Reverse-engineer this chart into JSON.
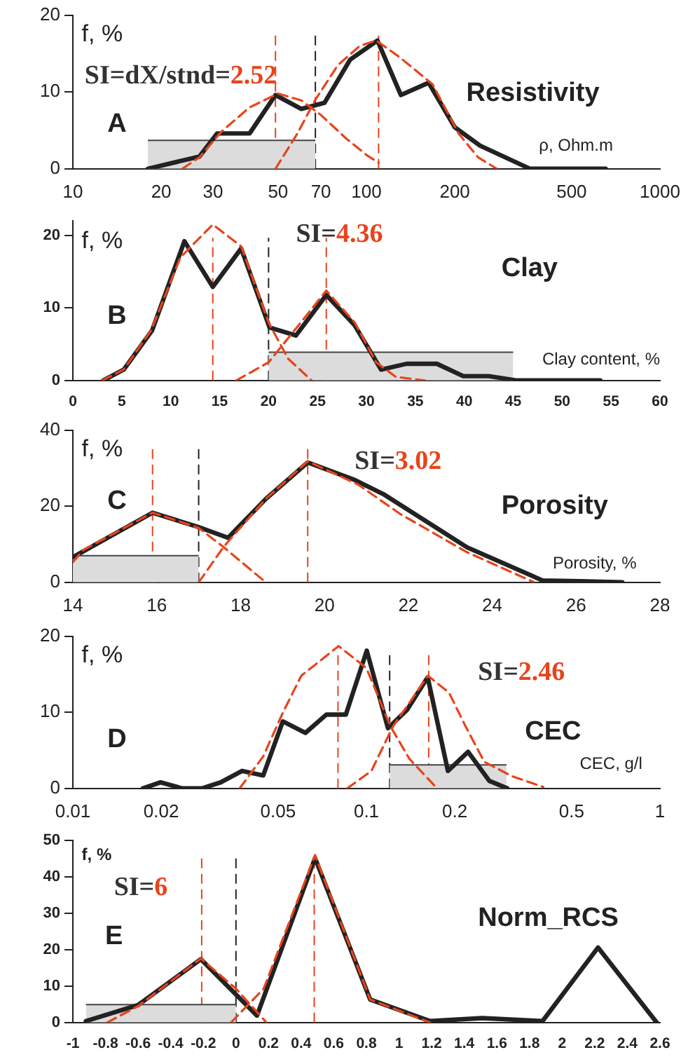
{
  "chart_data": [
    {
      "type": "line",
      "title": "Resistivity",
      "xlabel": "ρ, Ohm.m",
      "ylabel": "f, %",
      "annotations": [
        "A",
        "SI=dX/stnd=2.52"
      ],
      "log": "x",
      "xlim": [
        10,
        1000
      ],
      "xticks": [
        10,
        20,
        30,
        50,
        70,
        100,
        200,
        500,
        1000
      ],
      "ylim": [
        0,
        20
      ],
      "yticks": [
        0,
        10,
        20
      ],
      "grid": false,
      "legend": false,
      "marker": "none",
      "series": [
        {
          "type": "area",
          "color": "#dcdcdc",
          "x": [
            18,
            67
          ],
          "values": [
            3.7,
            3.7
          ]
        },
        {
          "color": "#e8441c",
          "line_style": "dashed",
          "x": [
            23.6,
            27,
            32,
            40,
            50,
            60,
            70,
            85,
            100,
            110
          ],
          "values": [
            0,
            1.5,
            4.8,
            8,
            9.8,
            8.9,
            7,
            4,
            1.8,
            0.8
          ]
        },
        {
          "color": "#e8441c",
          "line_style": "dashed",
          "x": [
            49,
            58,
            67,
            80,
            95,
            108,
            130,
            168,
            206,
            240,
            278
          ],
          "values": [
            0,
            4.5,
            9,
            13.5,
            16,
            16.7,
            14.5,
            11,
            4.6,
            1.5,
            0
          ]
        },
        {
          "color": "#222222",
          "line_style": "solid",
          "x": [
            18,
            27,
            31,
            40,
            49,
            60,
            72,
            88,
            109,
            131,
            163,
            200,
            244,
            361,
            653
          ],
          "values": [
            0,
            1.6,
            4.6,
            4.6,
            9.6,
            7.8,
            8.6,
            14.2,
            16.7,
            9.6,
            11.2,
            5.4,
            3,
            0,
            0
          ]
        }
      ],
      "ref_lines": [
        {
          "axis": "x",
          "value": 49,
          "color": "#e8441c",
          "line_style": "dashed"
        },
        {
          "axis": "x",
          "value": 110,
          "color": "#e8441c",
          "line_style": "dashed"
        },
        {
          "axis": "x",
          "value": 67,
          "color": "#222222",
          "line_style": "dashed"
        }
      ]
    },
    {
      "type": "line",
      "title": "Clay",
      "xlabel": "Clay content, %",
      "ylabel": "f, %",
      "annotations": [
        "B",
        "SI=4.36"
      ],
      "xlim": [
        0,
        60
      ],
      "xticks": [
        0,
        5,
        10,
        15,
        20,
        25,
        30,
        35,
        40,
        45,
        50,
        55,
        60
      ],
      "ylim": [
        0,
        22
      ],
      "yticks": [
        0,
        10,
        20
      ],
      "grid": false,
      "legend": false,
      "marker": "none",
      "series": [
        {
          "type": "area",
          "color": "#dcdcdc",
          "x": [
            20,
            45
          ],
          "values": [
            3.9,
            3.9
          ]
        },
        {
          "color": "#e8441c",
          "line_style": "dashed",
          "x": [
            3,
            5.2,
            8,
            11,
            14.3,
            17.2,
            20,
            22,
            24.4
          ],
          "values": [
            0,
            1.5,
            6.9,
            17,
            21.5,
            18.5,
            8,
            3,
            0
          ]
        },
        {
          "color": "#e8441c",
          "line_style": "dashed",
          "x": [
            16.7,
            20,
            23,
            25.9,
            28.8,
            31,
            33,
            36
          ],
          "values": [
            0,
            2.5,
            7.5,
            12.4,
            8,
            2.5,
            0.5,
            0
          ]
        },
        {
          "color": "#222222",
          "line_style": "solid",
          "x": [
            3.1,
            5.2,
            8.1,
            11.4,
            14.3,
            17.2,
            20.1,
            22.8,
            25.9,
            28.8,
            31.5,
            34.1,
            37.2,
            39.9,
            42.5,
            45.4,
            53.9
          ],
          "values": [
            0,
            1.5,
            6.9,
            19.2,
            12.9,
            18.2,
            7.3,
            6.2,
            11.8,
            7.6,
            1.5,
            2.3,
            2.3,
            0.6,
            0.6,
            0,
            0
          ]
        }
      ],
      "ref_lines": [
        {
          "axis": "x",
          "value": 14.3,
          "color": "#e8441c",
          "line_style": "dashed"
        },
        {
          "axis": "x",
          "value": 25.9,
          "color": "#e8441c",
          "line_style": "dashed"
        },
        {
          "axis": "x",
          "value": 20,
          "color": "#222222",
          "line_style": "dashed"
        }
      ]
    },
    {
      "type": "line",
      "title": "Porosity",
      "xlabel": "Porosity, %",
      "ylabel": "f, %",
      "annotations": [
        "C",
        "SI=3.02"
      ],
      "xlim": [
        14,
        28
      ],
      "xticks": [
        14,
        16,
        18,
        20,
        22,
        24,
        26,
        28
      ],
      "ylim": [
        0,
        40
      ],
      "yticks": [
        0,
        20,
        40
      ],
      "grid": false,
      "legend": false,
      "marker": "none",
      "series": [
        {
          "type": "area",
          "color": "#dcdcdc",
          "x": [
            14,
            17
          ],
          "values": [
            7,
            7
          ]
        },
        {
          "color": "#e8441c",
          "line_style": "dashed",
          "x": [
            14,
            14.25,
            15.9,
            17,
            17.6,
            18.6
          ],
          "values": [
            5.3,
            8.5,
            18.3,
            14.3,
            9.2,
            0
          ]
        },
        {
          "color": "#e8441c",
          "line_style": "dashed",
          "x": [
            17,
            17.6,
            18.6,
            19.6,
            20.8,
            21.8,
            23.4,
            25
          ],
          "values": [
            0,
            9.4,
            21.9,
            31.8,
            25.7,
            18,
            7.9,
            0
          ]
        },
        {
          "color": "#222222",
          "line_style": "solid",
          "x": [
            14,
            15.9,
            17,
            17.7,
            18.6,
            19.6,
            20.7,
            21.4,
            23.4,
            25.2,
            26.1,
            27.1
          ],
          "values": [
            6.6,
            18.3,
            14.5,
            11.7,
            21.9,
            31.5,
            27,
            23.2,
            9.2,
            0.5,
            0.3,
            0
          ]
        }
      ],
      "ref_lines": [
        {
          "axis": "x",
          "value": 15.9,
          "color": "#e8441c",
          "line_style": "dashed"
        },
        {
          "axis": "x",
          "value": 19.6,
          "color": "#e8441c",
          "line_style": "dashed"
        },
        {
          "axis": "x",
          "value": 17,
          "color": "#222222",
          "line_style": "dashed"
        }
      ]
    },
    {
      "type": "line",
      "title": "CEC",
      "xlabel": "CEC, g/l",
      "ylabel": "f, %",
      "annotations": [
        "D",
        "SI=2.46"
      ],
      "log": "x",
      "xlim": [
        0.01,
        1
      ],
      "xticks": [
        0.01,
        0.02,
        0.05,
        0.1,
        0.2,
        0.5,
        1
      ],
      "ylim": [
        0,
        20
      ],
      "yticks": [
        0,
        10,
        20
      ],
      "grid": false,
      "legend": false,
      "marker": "none",
      "series": [
        {
          "type": "area",
          "color": "#dcdcdc",
          "x": [
            0.12,
            0.3
          ],
          "values": [
            3.1,
            3.1
          ]
        },
        {
          "color": "#e8441c",
          "line_style": "dashed",
          "x": [
            0.037,
            0.0445,
            0.052,
            0.06,
            0.0804,
            0.1,
            0.121,
            0.14,
            0.174
          ],
          "values": [
            0,
            4.2,
            10,
            14.8,
            18.7,
            15.8,
            8.1,
            3.9,
            0
          ]
        },
        {
          "color": "#e8441c",
          "line_style": "dashed",
          "x": [
            0.086,
            0.104,
            0.123,
            0.162,
            0.191,
            0.218,
            0.252,
            0.313,
            0.4
          ],
          "values": [
            0,
            2.3,
            8.1,
            14.8,
            12.6,
            8.1,
            3.5,
            1.6,
            0.2
          ]
        },
        {
          "color": "#222222",
          "line_style": "solid",
          "x": [
            0.0173,
            0.0199,
            0.0236,
            0.0275,
            0.0319,
            0.0377,
            0.0445,
            0.0519,
            0.062,
            0.0731,
            0.0851,
            0.1003,
            0.1184,
            0.1374,
            0.1617,
            0.1895,
            0.222,
            0.262,
            0.302
          ],
          "values": [
            0,
            0.8,
            0,
            0,
            0.8,
            2.3,
            1.7,
            8.8,
            7.3,
            9.7,
            9.7,
            18.1,
            7.9,
            10.3,
            14.6,
            2.3,
            4.8,
            1,
            0
          ]
        }
      ],
      "ref_lines": [
        {
          "axis": "x",
          "value": 0.08,
          "color": "#e8441c",
          "line_style": "dashed"
        },
        {
          "axis": "x",
          "value": 0.163,
          "color": "#e8441c",
          "line_style": "dashed"
        },
        {
          "axis": "x",
          "value": 0.12,
          "color": "#222222",
          "line_style": "dashed"
        }
      ]
    },
    {
      "type": "line",
      "title": "Norm_RCS",
      "ylabel": "f, %",
      "annotations": [
        "E",
        "SI=6"
      ],
      "xlim": [
        -1,
        2.6
      ],
      "xticks": [
        -1,
        -0.8,
        -0.6,
        -0.4,
        -0.2,
        0,
        0.2,
        0.4,
        0.6,
        0.8,
        1,
        1.2,
        1.4,
        1.6,
        1.8,
        2,
        2.2,
        2.4,
        2.6
      ],
      "ylim": [
        0,
        50
      ],
      "yticks": [
        0,
        10,
        20,
        30,
        40,
        50
      ],
      "grid": false,
      "legend": false,
      "marker": "none",
      "series": [
        {
          "type": "area",
          "color": "#dcdcdc",
          "x": [
            -0.92,
            0
          ],
          "values": [
            4.9,
            4.9
          ]
        },
        {
          "color": "#e8441c",
          "line_style": "dashed",
          "x": [
            -0.79,
            -0.6,
            -0.215,
            0,
            0.187
          ],
          "values": [
            0,
            4.5,
            17.6,
            9.3,
            0
          ]
        },
        {
          "color": "#e8441c",
          "line_style": "dashed",
          "x": [
            -0.03,
            0.17,
            0.485,
            0.823,
            1.19
          ],
          "values": [
            0,
            9.3,
            46,
            6.3,
            0
          ]
        },
        {
          "color": "#222222",
          "line_style": "solid",
          "x": [
            -0.92,
            -0.6,
            -0.215,
            0.129,
            0.485,
            0.823,
            1.19,
            1.51,
            1.88,
            2.22,
            2.58
          ],
          "values": [
            0.4,
            4.8,
            17.4,
            1.9,
            45.2,
            6.3,
            0.4,
            1.2,
            0.4,
            20.6,
            0
          ]
        }
      ],
      "ref_lines": [
        {
          "axis": "x",
          "value": -0.21,
          "color": "#e8441c",
          "line_style": "dashed"
        },
        {
          "axis": "x",
          "value": 0.48,
          "color": "#e8441c",
          "line_style": "dashed"
        },
        {
          "axis": "x",
          "value": 0,
          "color": "#222222",
          "line_style": "dashed"
        }
      ]
    }
  ]
}
